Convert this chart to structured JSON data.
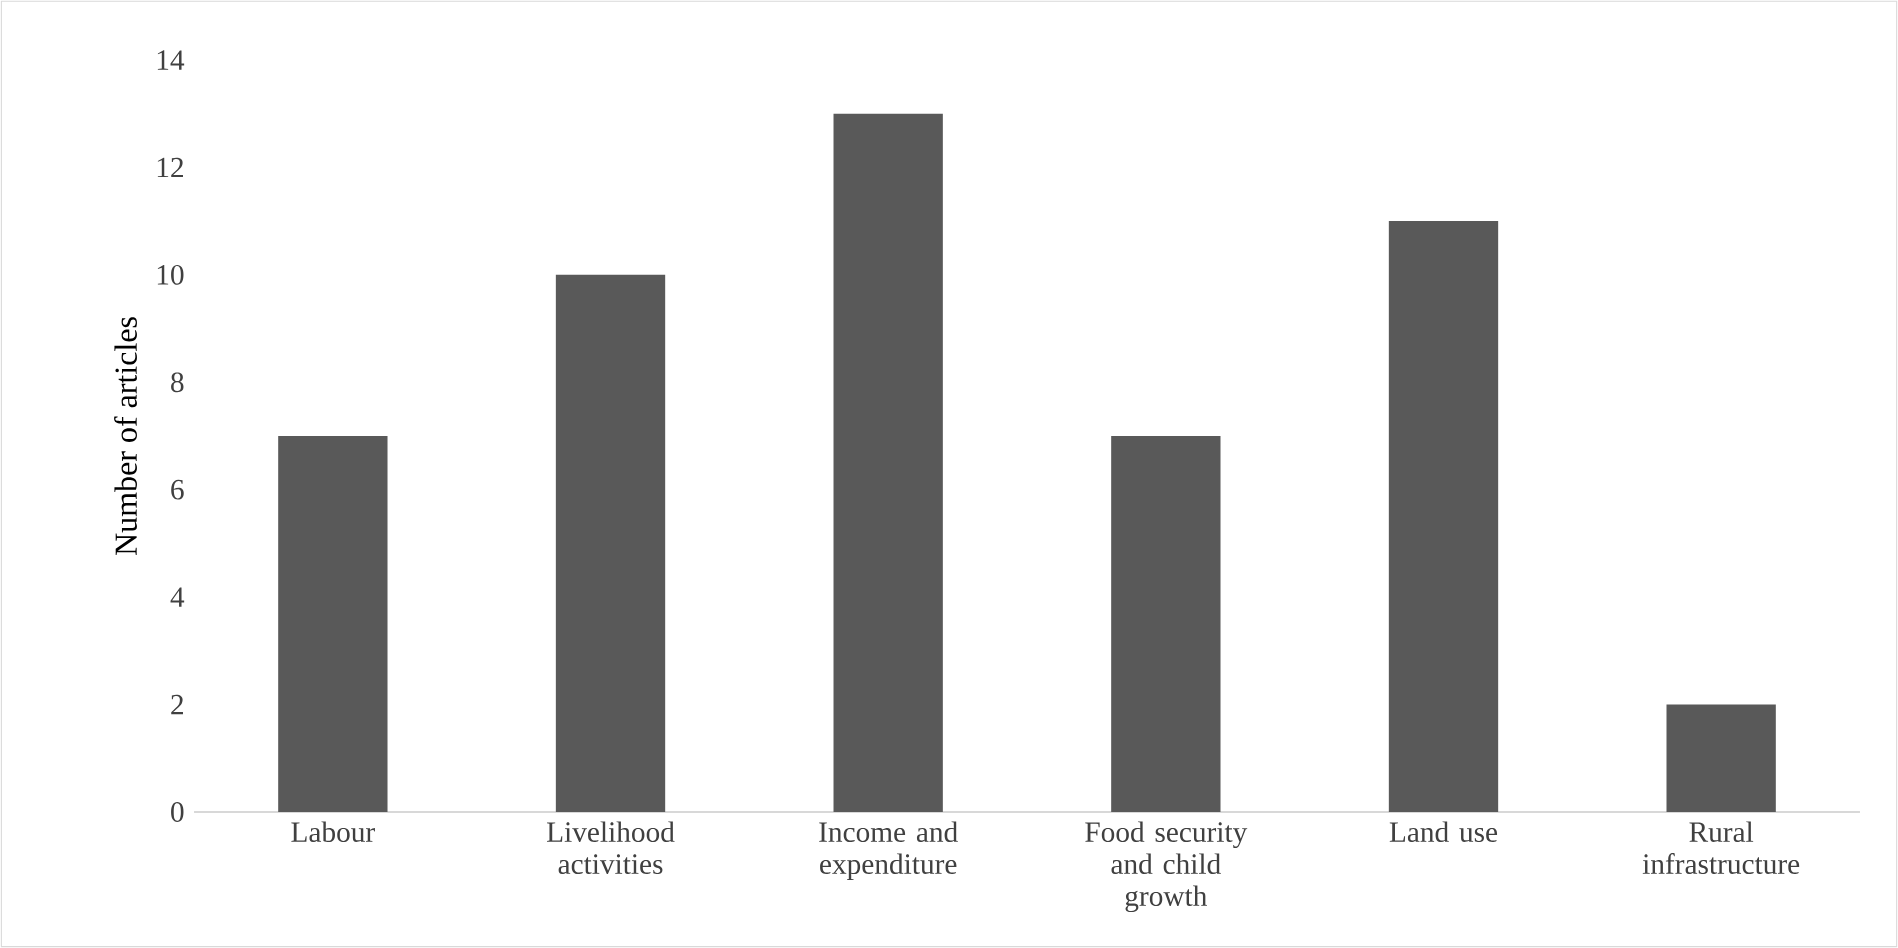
{
  "chart_data": {
    "type": "bar",
    "ylabel": "Number of articles",
    "categories": [
      "Labour",
      "Livelihood activities",
      "Income and expenditure",
      "Food security and child growth",
      "Land use",
      "Rural infrastructure"
    ],
    "values": [
      7,
      10,
      13,
      7,
      11,
      2
    ],
    "color": "#595959",
    "ylim": [
      0,
      14
    ],
    "yticks": [
      0,
      2,
      4,
      6,
      8,
      10,
      12,
      14
    ],
    "grid": false
  }
}
